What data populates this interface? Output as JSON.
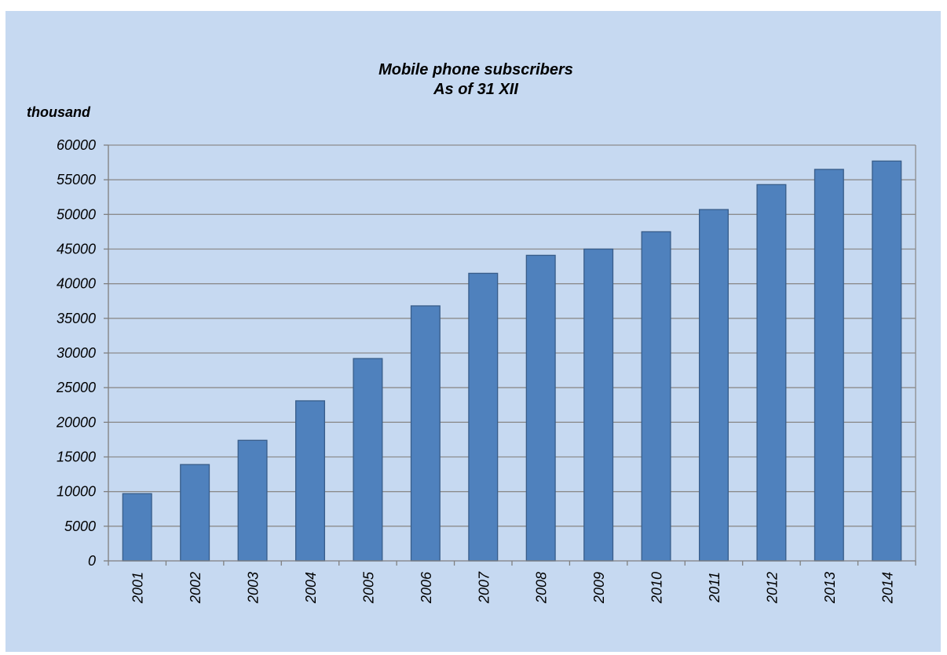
{
  "chart_data": {
    "type": "bar",
    "title": "Mobile phone subscribers",
    "subtitle": "As of 31 XII",
    "ylabel": "thousand",
    "xlabel": "",
    "categories": [
      "2001",
      "2002",
      "2003",
      "2004",
      "2005",
      "2006",
      "2007",
      "2008",
      "2009",
      "2010",
      "2011",
      "2012",
      "2013",
      "2014"
    ],
    "values": [
      9700,
      13900,
      17400,
      23100,
      29200,
      36800,
      41500,
      44100,
      45000,
      47500,
      50700,
      54300,
      56500,
      57700
    ],
    "ylim": [
      0,
      60000
    ],
    "yticks": [
      "0",
      "5000",
      "10000",
      "15000",
      "20000",
      "25000",
      "30000",
      "35000",
      "40000",
      "45000",
      "50000",
      "55000",
      "60000"
    ],
    "grid": true,
    "legend": "none",
    "colors": {
      "background": "#c6d9f1",
      "bar": "#4f81bd",
      "bar_border": "#385d8a",
      "gridline": "#8c8c8c"
    }
  }
}
